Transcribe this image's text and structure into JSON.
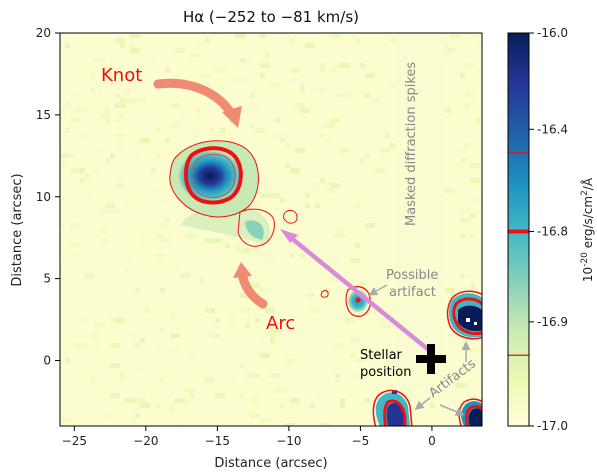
{
  "chart_data": {
    "type": "heatmap",
    "title": "Hα (−252 to  −81 km/s)",
    "xlabel": "Distance (arcsec)",
    "ylabel": "Distance (arcsec)",
    "xlim": [
      -26,
      3.5
    ],
    "ylim": [
      -4,
      20
    ],
    "xticks": [
      -25,
      -20,
      -15,
      -10,
      -5,
      0
    ],
    "xtick_labels": [
      "−25",
      "−20",
      "−15",
      "−10",
      "−5",
      "0"
    ],
    "yticks": [
      0,
      5,
      10,
      15,
      20
    ],
    "ytick_labels": [
      "0",
      "5",
      "10",
      "15",
      "20"
    ],
    "colorbar": {
      "label": "10$^{-20}$ erg/s/cm$^2$/Å",
      "range": [
        -17.0,
        -16.0
      ],
      "ticks": [
        -16.0,
        -16.4,
        -16.8,
        -16.9,
        -17.0
      ],
      "tick_labels": [
        "-16.0",
        "-16.4",
        "-16.8",
        "-16.9",
        "-17.0"
      ],
      "colors": [
        "#ffffd9",
        "#edf8b1",
        "#c7e9b4",
        "#7fcdbb",
        "#41b6c4",
        "#1d91c0",
        "#225ea8",
        "#253494",
        "#081d58"
      ],
      "contour_markers": [
        {
          "value": -16.55,
          "width": "thin"
        },
        {
          "value": -16.8,
          "width": "thick"
        },
        {
          "value": -16.93,
          "width": "thin"
        }
      ]
    },
    "contour_color": "#ee1111",
    "features": [
      {
        "name": "Knot",
        "x": -15.2,
        "y": 11.2
      },
      {
        "name": "Arc",
        "x": -11.5,
        "y": 8.0
      },
      {
        "name": "Possible artifact",
        "x": -5.0,
        "y": 3.6
      },
      {
        "name": "Stellar position",
        "x": 0.0,
        "y": 0.0
      }
    ]
  },
  "annotations": {
    "knot": "Knot",
    "arc": "Arc",
    "spikes": "Masked diffraction spikes",
    "possible_artifact_line1": "Possible",
    "possible_artifact_line2": "artifact",
    "stellar_line1": "Stellar",
    "stellar_line2": "position",
    "artifacts": "Artifacts"
  },
  "colors": {
    "annotation_red": "#ee1111",
    "annotation_gray": "#888888",
    "arrow_salmon": "#f08a72",
    "arrow_pink": "#d98ad9",
    "star_marker": "#000000"
  }
}
